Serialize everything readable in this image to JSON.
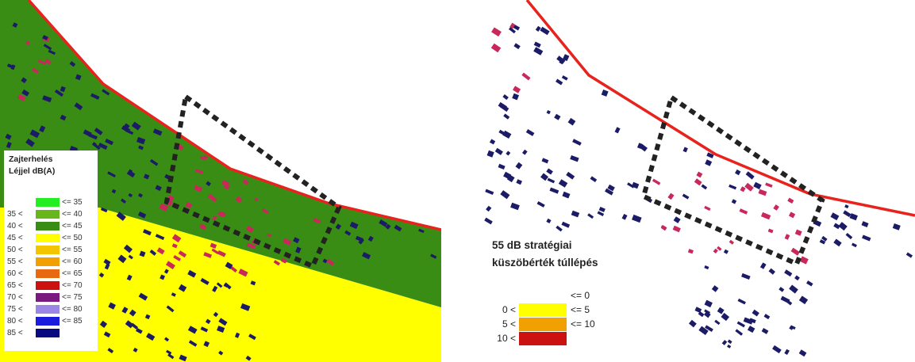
{
  "noise_map": {
    "legend_title_1": "Zajterhelés",
    "legend_title_2": "Léjjel dB(A)",
    "legend_items": [
      {
        "low": "",
        "high": "<= 35",
        "color": "#22ee22"
      },
      {
        "low": "35 <",
        "high": "<= 40",
        "color": "#66b61c"
      },
      {
        "low": "40 <",
        "high": "<= 45",
        "color": "#3a8d14"
      },
      {
        "low": "45 <",
        "high": "<= 50",
        "color": "#ffff00"
      },
      {
        "low": "50 <",
        "high": "<= 55",
        "color": "#f2c500"
      },
      {
        "low": "55 <",
        "high": "<= 60",
        "color": "#f2a000"
      },
      {
        "low": "60 <",
        "high": "<= 65",
        "color": "#e86a10"
      },
      {
        "low": "65 <",
        "high": "<= 70",
        "color": "#cc1111"
      },
      {
        "low": "70 <",
        "high": "<= 75",
        "color": "#7a1a80"
      },
      {
        "low": "75 <",
        "high": "<= 80",
        "color": "#9b86e6"
      },
      {
        "low": "80 <",
        "high": "<= 85",
        "color": "#1c1cdc"
      },
      {
        "low": "85 <",
        "high": "",
        "color": "#0a0a80"
      }
    ]
  },
  "exceedance_map": {
    "legend_title_1": "55 dB stratégiai",
    "legend_title_2": "küszöbérték túllépés",
    "legend_items": [
      {
        "low": "",
        "high": "<=   0",
        "color": "#ffffff"
      },
      {
        "low": "0 <",
        "high": "<=   5",
        "color": "#ffff00"
      },
      {
        "low": "5 <",
        "high": "<= 10",
        "color": "#f0a000"
      },
      {
        "low": "10 <",
        "high": "",
        "color": "#cc1111"
      }
    ]
  },
  "colors": {
    "road": "#e8221c",
    "zone_green": "#3a8d14",
    "zone_yellow": "#ffff00",
    "building": "#1c1c66",
    "building_hot": "#c8285a",
    "highlight_box": "#222222"
  }
}
